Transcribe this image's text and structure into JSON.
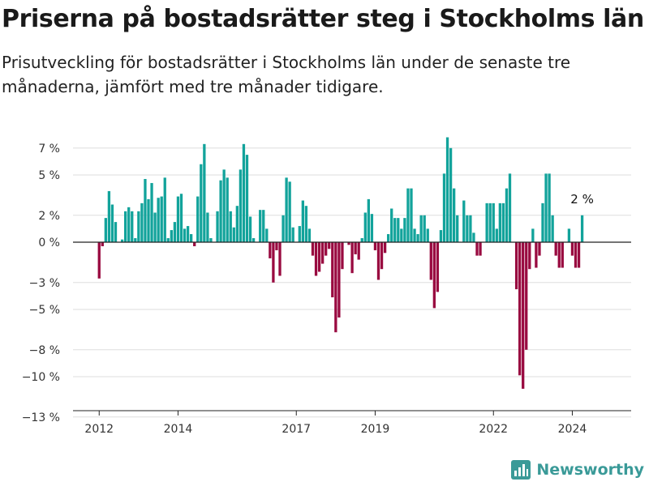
{
  "title": "Priserna på bostadsrätter steg i Stockholms län",
  "subtitle": "Prisutveckling för bostadsrätter i Stockholms län under de senaste tre månaderna, jämfört med tre månader tidigare.",
  "brand": "Newsworthy",
  "colors": {
    "positive": "#12a39b",
    "negative": "#990a40",
    "grid": "#dddddd",
    "axis": "#222222",
    "brand": "#3a9a98"
  },
  "chart_data": {
    "type": "bar",
    "title": "Priserna på bostadsrätter steg i Stockholms län",
    "subtitle": "Prisutveckling för bostadsrätter i Stockholms län under de senaste tre månaderna, jämfört med tre månader tidigare.",
    "xlabel": "",
    "ylabel": "",
    "x_start": "2012-01",
    "y_ticks": [
      7,
      5,
      2,
      0,
      -3,
      -5,
      -8,
      -10,
      -13
    ],
    "y_tick_labels": [
      "7 %",
      "5 %",
      "2 %",
      "0 %",
      "−3 %",
      "−5 %",
      "−8 %",
      "−10 %",
      "−13 %"
    ],
    "ylim": [
      -13,
      8
    ],
    "x_ticks": [
      "2012",
      "2014",
      "2017",
      "2019",
      "2022",
      "2024"
    ],
    "grid": true,
    "annotation": "2 %",
    "values": [
      -2.7,
      -0.3,
      1.8,
      3.8,
      2.8,
      1.5,
      0.0,
      0.2,
      2.3,
      2.6,
      2.3,
      0.3,
      2.3,
      2.9,
      4.7,
      3.2,
      4.4,
      2.2,
      3.3,
      3.4,
      4.8,
      0.3,
      0.9,
      1.5,
      3.4,
      3.6,
      1.0,
      1.2,
      0.6,
      -0.3,
      3.4,
      5.8,
      7.3,
      2.2,
      0.3,
      0.0,
      2.3,
      4.6,
      5.4,
      4.8,
      2.3,
      1.1,
      2.7,
      5.4,
      7.3,
      6.5,
      1.9,
      0.3,
      0.0,
      2.4,
      2.4,
      1.0,
      -1.2,
      -3.0,
      -0.6,
      -2.5,
      2.0,
      4.8,
      4.5,
      1.1,
      0.0,
      1.2,
      3.1,
      2.7,
      1.0,
      -1.0,
      -2.5,
      -2.2,
      -1.6,
      -1.0,
      -0.5,
      -4.1,
      -6.7,
      -5.6,
      -2.0,
      0.0,
      -0.2,
      -2.3,
      -0.9,
      -1.3,
      0.3,
      2.2,
      3.2,
      2.1,
      -0.6,
      -2.8,
      -2.0,
      -0.8,
      0.6,
      2.5,
      1.8,
      1.8,
      1.0,
      1.8,
      4.0,
      4.0,
      1.0,
      0.6,
      2.0,
      2.0,
      1.0,
      -2.8,
      -4.9,
      -3.7,
      0.9,
      5.1,
      7.8,
      7.0,
      4.0,
      2.0,
      0.0,
      3.1,
      2.0,
      2.0,
      0.7,
      -1.0,
      -1.0,
      0.0,
      2.9,
      2.9,
      2.9,
      1.0,
      2.9,
      2.9,
      4.0,
      5.1,
      0.0,
      -3.5,
      -9.9,
      -10.9,
      -8.0,
      -2.0,
      1.0,
      -1.9,
      -1.0,
      2.9,
      5.1,
      5.1,
      2.0,
      -1.0,
      -1.9,
      -1.9,
      0.0,
      1.0,
      -1.0,
      -1.9,
      -1.9,
      2.0
    ]
  }
}
